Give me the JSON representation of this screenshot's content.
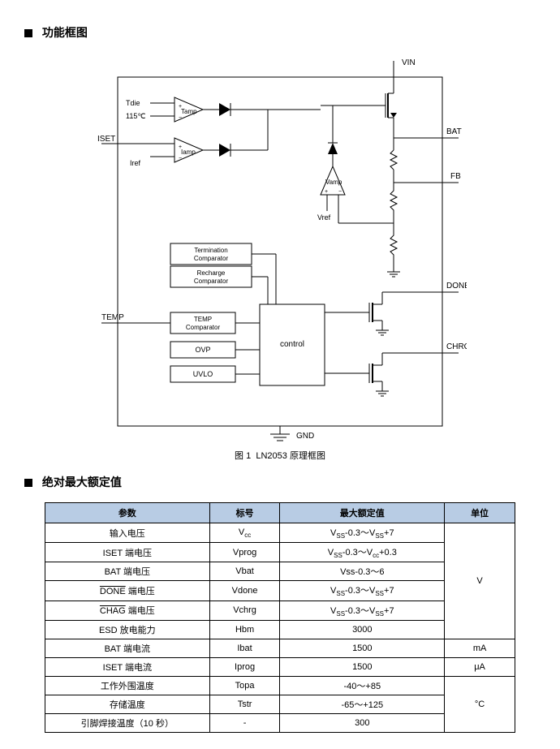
{
  "section1": {
    "title": "功能框图"
  },
  "diagram": {
    "caption_prefix": "图 1",
    "caption_text": "LN2053 原理框图",
    "labels": {
      "VIN": "VIN",
      "BAT": "BAT",
      "FB": "FB",
      "DONE": "DONE",
      "CHRG": "CHRG",
      "GND": "GND",
      "ISET": "ISET",
      "TEMP": "TEMP",
      "Tdie": "Tdie",
      "T115": "115℃",
      "Iref": "Iref",
      "Vref": "Vref",
      "Tamp": "Tamp",
      "Iamp": "Iamp",
      "Vamp": "Vamp",
      "term": "Termination Comparator",
      "rech": "Recharge Comparator",
      "tempc": "TEMP Comparator",
      "ovp": "OVP",
      "uvlo": "UVLO",
      "control": "control"
    },
    "colors": {
      "stroke": "#000000",
      "fill": "#ffffff"
    },
    "fontsize": 9
  },
  "section2": {
    "title": "绝对最大额定值"
  },
  "table": {
    "header_bg": "#b8cce4",
    "headers": [
      "参数",
      "标号",
      "最大额定值",
      "单位"
    ],
    "rows": [
      {
        "p": "输入电压",
        "s": "V_cc",
        "v": "V_SS-0.3～V_SS+7",
        "u": "",
        "unit_group": 0
      },
      {
        "p": "ISET 端电压",
        "s": "Vprog",
        "v": "V_SS-0.3～V_cc+0.3",
        "u": "",
        "unit_group": 0
      },
      {
        "p": "BAT 端电压",
        "s": "Vbat",
        "v": "Vss-0.3～6",
        "u": "",
        "unit_group": 0
      },
      {
        "p": "/DONE 端电压",
        "s": "Vdone",
        "v": "V_SS-0.3～V_SS+7",
        "u": "V",
        "unit_group": 0
      },
      {
        "p": "/CHAG 端电压",
        "s": "Vchrg",
        "v": "V_SS-0.3～V_SS+7",
        "u": "",
        "unit_group": 0
      },
      {
        "p": "ESD 放电能力",
        "s": "Hbm",
        "v": "3000",
        "u": "",
        "unit_group": 0
      },
      {
        "p": "BAT 端电流",
        "s": "Ibat",
        "v": "1500",
        "u": "mA",
        "unit_group": 1
      },
      {
        "p": "ISET 端电流",
        "s": "Iprog",
        "v": "1500",
        "u": "μA",
        "unit_group": 2
      },
      {
        "p": "工作外围温度",
        "s": "Topa",
        "v": "-40～+85",
        "u": "",
        "unit_group": 3
      },
      {
        "p": "存储温度",
        "s": "Tstr",
        "v": "-65～+125",
        "u": "°C",
        "unit_group": 3
      },
      {
        "p": "引脚焊接温度（10 秒）",
        "s": "-",
        "v": "300",
        "u": "",
        "unit_group": 3
      }
    ],
    "unit_groups": {
      "0": {
        "label": "V",
        "span": 6
      },
      "1": {
        "label": "mA",
        "span": 1
      },
      "2": {
        "label": "μA",
        "span": 1
      },
      "3": {
        "label": "°C",
        "span": 3
      }
    },
    "col_widths": [
      "35%",
      "15%",
      "35%",
      "15%"
    ]
  }
}
